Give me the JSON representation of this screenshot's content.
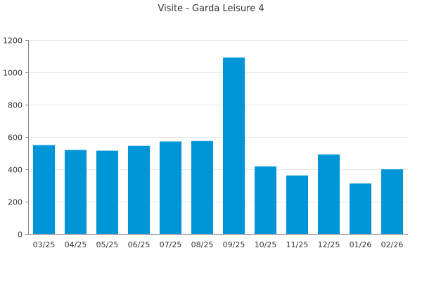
{
  "chart_data": {
    "type": "bar",
    "title": "Visite - Garda Leisure 4",
    "xlabel": "",
    "ylabel": "",
    "categories": [
      "03/25",
      "04/25",
      "05/25",
      "06/25",
      "07/25",
      "08/25",
      "09/25",
      "10/25",
      "11/25",
      "12/25",
      "01/26",
      "02/26"
    ],
    "values": [
      550,
      520,
      515,
      545,
      572,
      575,
      1092,
      418,
      362,
      492,
      312,
      400
    ],
    "ylim": [
      0,
      1200
    ],
    "yticks": [
      0,
      200,
      400,
      600,
      800,
      1000,
      1200
    ],
    "grid": true,
    "legend": "none",
    "bar_color": "#0095d6"
  }
}
